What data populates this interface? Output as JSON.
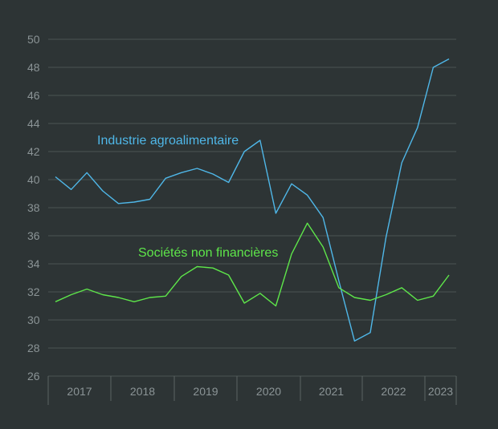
{
  "chart_data": {
    "type": "line",
    "title": "",
    "xlabel": "",
    "ylabel": "",
    "ylim": [
      26,
      50
    ],
    "yticks": [
      26,
      28,
      30,
      32,
      34,
      36,
      38,
      40,
      42,
      44,
      46,
      48,
      50
    ],
    "grid": true,
    "year_labels": [
      "2017",
      "2018",
      "2019",
      "2020",
      "2021",
      "2022",
      "2023"
    ],
    "x": [
      "2016-T4",
      "2017-T1",
      "2017-T2",
      "2017-T3",
      "2017-T4",
      "2018-T1",
      "2018-T2",
      "2018-T3",
      "2018-T4",
      "2019-T1",
      "2019-T2",
      "2019-T3",
      "2019-T4",
      "2020-T1",
      "2020-T2",
      "2020-T3",
      "2020-T4",
      "2021-T1",
      "2021-T2",
      "2021-T3",
      "2021-T4",
      "2022-T1",
      "2022-T2",
      "2022-T3",
      "2022-T4",
      "2023-T1"
    ],
    "series": [
      {
        "name": "Industrie agroalimentaire",
        "color": "#4fb7e8",
        "values": [
          40.2,
          39.3,
          40.5,
          39.2,
          38.3,
          38.4,
          38.6,
          40.1,
          40.5,
          40.8,
          40.4,
          39.8,
          42.0,
          42.8,
          37.6,
          39.7,
          38.9,
          37.3,
          32.8,
          28.5,
          29.1,
          35.9,
          41.2,
          43.7,
          48.0,
          48.6
        ]
      },
      {
        "name": "Sociétés non financières",
        "color": "#5ee64a",
        "values": [
          31.3,
          31.8,
          32.2,
          31.8,
          31.6,
          31.3,
          31.6,
          31.7,
          33.1,
          33.8,
          33.7,
          33.2,
          31.2,
          31.9,
          31.0,
          34.7,
          36.9,
          35.2,
          32.3,
          31.6,
          31.4,
          31.8,
          32.3,
          31.4,
          31.7,
          33.2
        ]
      }
    ]
  }
}
